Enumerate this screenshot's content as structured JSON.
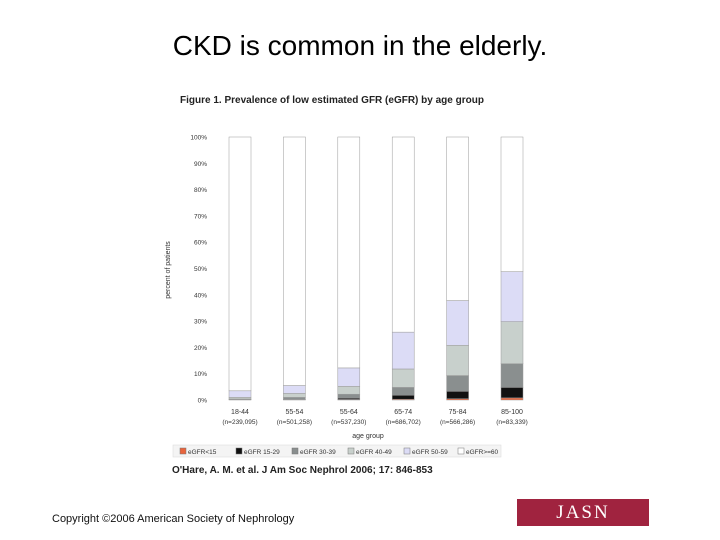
{
  "slide": {
    "title": "CKD is common in the elderly.",
    "citation": "O'Hare, A. M. et al. J Am Soc Nephrol 2006; 17: 846-853",
    "copyright": "Copyright ©2006 American Society of Nephrology",
    "logo_text": "JASN",
    "logo_color": "#a0233f"
  },
  "chart_data": {
    "type": "bar",
    "stacked": true,
    "title": "Figure 1. Prevalence of low estimated GFR (eGFR) by age group",
    "xlabel": "age group",
    "ylabel": "percent of patients",
    "ylim": [
      0,
      100
    ],
    "yticks": [
      "0%",
      "10%",
      "20%",
      "30%",
      "40%",
      "50%",
      "60%",
      "70%",
      "80%",
      "90%",
      "100%"
    ],
    "categories": [
      "18-44",
      "55-54",
      "55-64",
      "65-74",
      "75-84",
      "85-100"
    ],
    "category_n": [
      "(n=239,095)",
      "(n=501,258)",
      "(n=537,230)",
      "(n=686,702)",
      "(n=566,286)",
      "(n=83,339)"
    ],
    "series": [
      {
        "name": "eGFR<15",
        "color": "#e8643c",
        "values": [
          0.1,
          0.1,
          0.2,
          0.3,
          0.5,
          0.8
        ]
      },
      {
        "name": "eGFR 15-29",
        "color": "#111111",
        "values": [
          0.1,
          0.2,
          0.5,
          1.5,
          2.8,
          4.0
        ]
      },
      {
        "name": "eGFR 30-39",
        "color": "#8a8f8f",
        "values": [
          0.2,
          0.7,
          1.5,
          3.0,
          6.0,
          9.0
        ]
      },
      {
        "name": "eGFR 40-49",
        "color": "#c8d0cc",
        "values": [
          0.6,
          1.5,
          3.0,
          7.0,
          11.5,
          16.0
        ]
      },
      {
        "name": "eGFR 50-59",
        "color": "#dcdcf6",
        "values": [
          2.5,
          3.0,
          7.0,
          14.0,
          17.0,
          19.0
        ]
      },
      {
        "name": "eGFR>=60",
        "color": "#ffffff",
        "values": [
          96.5,
          94.5,
          87.8,
          74.2,
          62.2,
          51.2
        ]
      }
    ]
  }
}
